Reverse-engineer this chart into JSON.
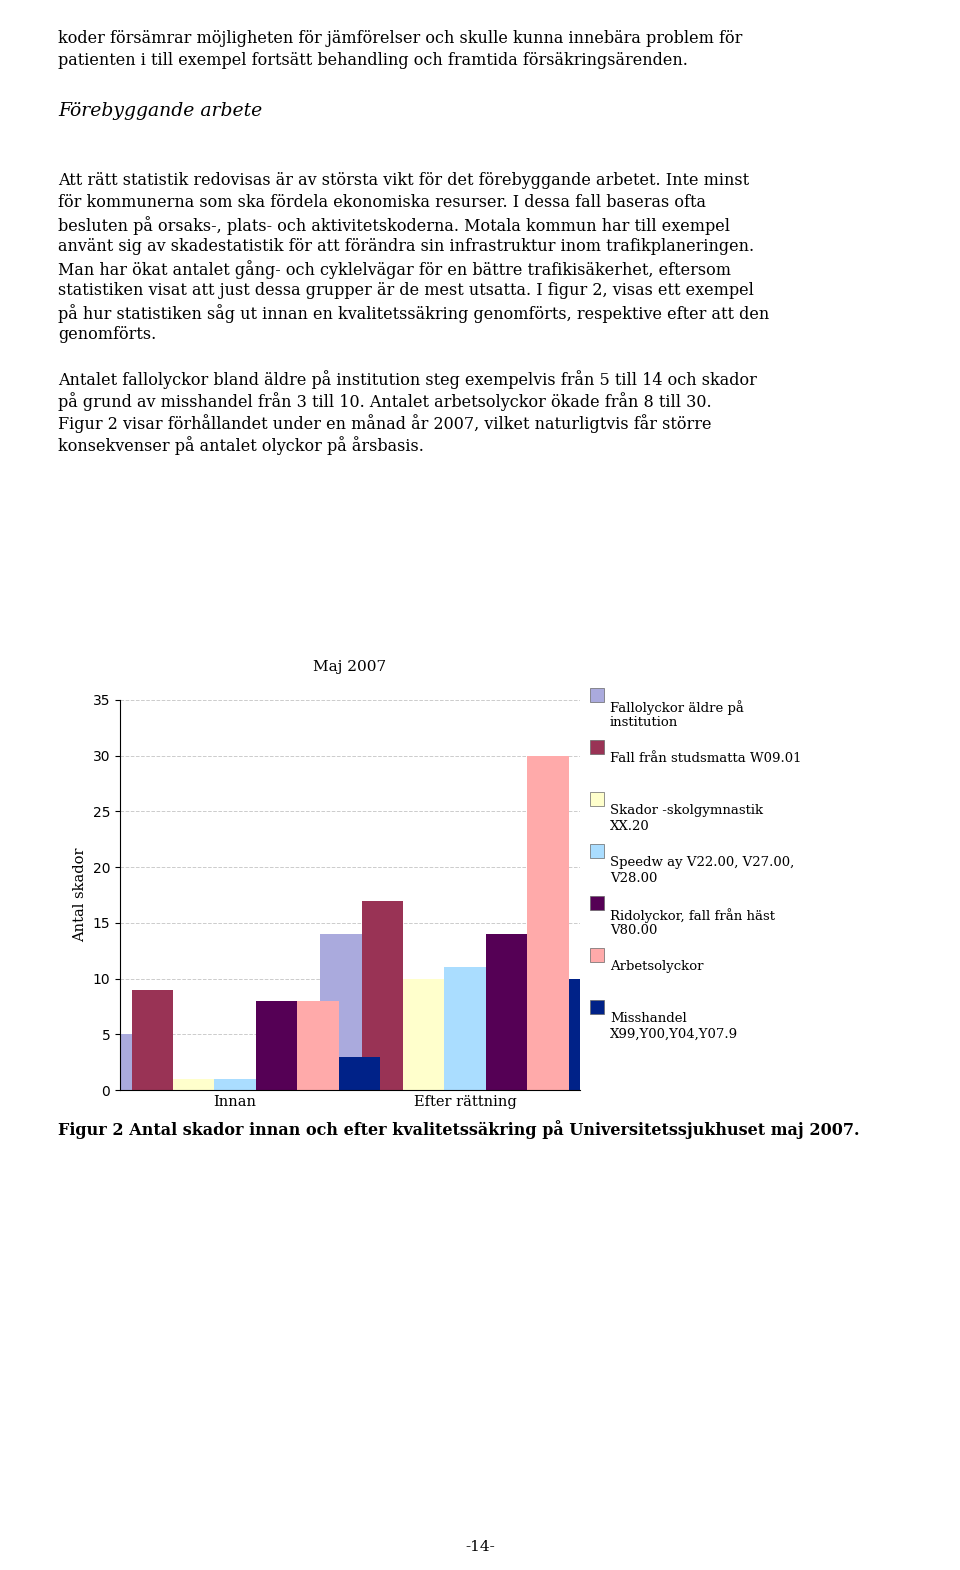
{
  "title": "Maj 2007",
  "ylabel": "Antal skador",
  "groups": [
    "Innan",
    "Efter rättning"
  ],
  "series": [
    {
      "label": "Fallolyckor äldre på\ninstitution",
      "color": "#aaaadd",
      "values": [
        5,
        14
      ]
    },
    {
      "label": "Fall från studsmatta W09.01",
      "color": "#993355",
      "values": [
        9,
        17
      ]
    },
    {
      "label": "Skador -skolgymnastik\nXX.20",
      "color": "#ffffcc",
      "values": [
        1,
        10
      ]
    },
    {
      "label": "Speedw ay V22.00, V27.00,\nV28.00",
      "color": "#aaddff",
      "values": [
        1,
        11
      ]
    },
    {
      "label": "Ridolyckor, fall från häst\nV80.00",
      "color": "#550055",
      "values": [
        8,
        14
      ]
    },
    {
      "label": "Arbetsolyckor",
      "color": "#ffaaaa",
      "values": [
        8,
        30
      ]
    },
    {
      "label": "Misshandel\nX99,Y00,Y04,Y07.9",
      "color": "#002288",
      "values": [
        3,
        10
      ]
    }
  ],
  "ylim": [
    0,
    35
  ],
  "yticks": [
    0,
    5,
    10,
    15,
    20,
    25,
    30,
    35
  ],
  "figure_caption": "Figur 2 Antal skador innan och efter kvalitetssäkring på Universitetssjukhuset maj 2007.",
  "page_number": "-14-",
  "background_color": "#ffffff",
  "text_color": "#000000",
  "line1": "koder försämrar möjligheten för jämförelser och skulle kunna innebära problem för",
  "line2": "patienten i till exempel fortsätt behandling och framtida försäkringsärenden.",
  "heading": "Förebyggande arbete",
  "para1_lines": [
    "Att rätt statistik redovisas är av största vikt för det förebyggande arbetet. Inte minst",
    "för kommunerna som ska fördela ekonomiska resurser. I dessa fall baseras ofta",
    "besluten på orsaks-, plats- och aktivitetskoderna. Motala kommun har till exempel",
    "använt sig av skadestatistik för att förändra sin infrastruktur inom trafikplaneringen.",
    "Man har ökat antalet gång- och cyklelvägar för en bättre trafikisäkerhet, eftersom",
    "statistiken visat att just dessa grupper är de mest utsatta. I figur 2, visas ett exempel",
    "på hur statistiken såg ut innan en kvalitetssäkring genomförts, respektive efter att den",
    "genomförts."
  ],
  "para2_lines": [
    "Antalet fallolyckor bland äldre på institution steg exempelvis från 5 till 14 och skador",
    "på grund av misshandel från 3 till 10. Antalet arbetsolyckor ökade från 8 till 30.",
    "Figur 2 visar förhållandet under en månad år 2007, vilket naturligtvis får större",
    "konsekvenser på antalet olyckor på årsbasis."
  ]
}
